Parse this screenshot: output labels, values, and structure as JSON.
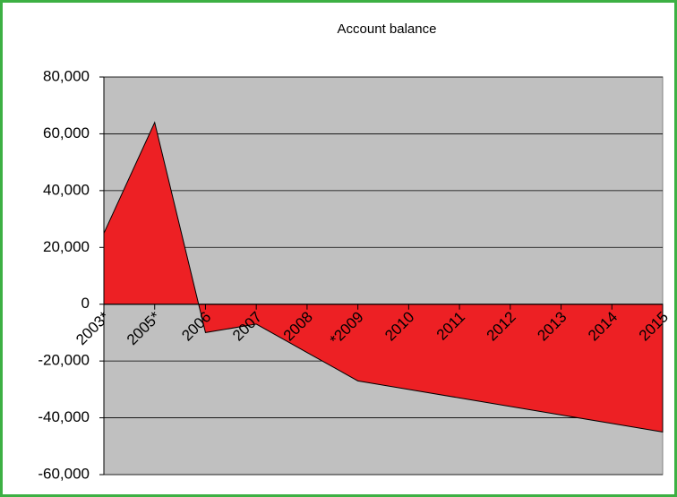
{
  "chart_data": {
    "type": "area",
    "title": "Account balance",
    "categories": [
      "2003*",
      "2005*",
      "2006",
      "2007",
      "2008",
      "*2009",
      "2010",
      "2011",
      "2012",
      "2013",
      "2014",
      "2015"
    ],
    "values": [
      25000,
      64000,
      -10000,
      -7000,
      -17000,
      -27000,
      -30000,
      -33000,
      -36000,
      -39000,
      -42000,
      -45000
    ],
    "color": "#ed2024",
    "ylim": [
      -60000,
      80000
    ],
    "yticks": [
      {
        "value": -60000,
        "label": "-60,000"
      },
      {
        "value": -40000,
        "label": "-40,000"
      },
      {
        "value": -20000,
        "label": "-20,000"
      },
      0,
      {
        "value": 20000,
        "label": "20,000"
      },
      {
        "value": 40000,
        "label": "40,000"
      },
      {
        "value": 60000,
        "label": "60,000"
      },
      {
        "value": 80000,
        "label": "80,000"
      }
    ],
    "grid": true
  }
}
